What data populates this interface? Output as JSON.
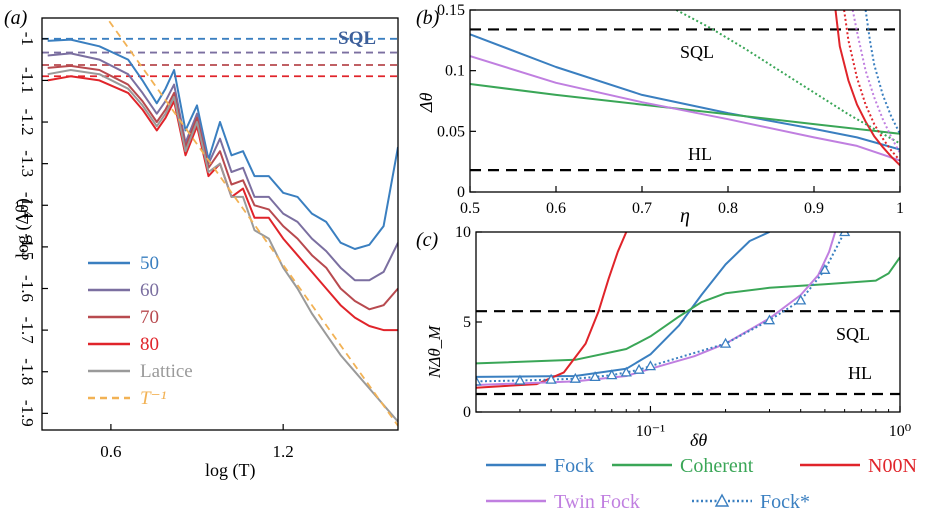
{
  "colors": {
    "blue": "#3a7fc0",
    "purple_gray": "#7b6fa0",
    "brown_red": "#b84a4f",
    "red": "#e0242a",
    "gray": "#9a9a9a",
    "orange": "#f2b255",
    "green": "#3aa657",
    "violet": "#c07fe0",
    "black": "#000000",
    "sql_blue": "#3d5f9a",
    "sql_red": "#c62828"
  },
  "chart_data": [
    {
      "panel": "(a)",
      "type": "line",
      "xlabel": "log (T)",
      "ylabel": "log (Δθ̄)",
      "xlim": [
        0.36,
        1.6
      ],
      "ylim": [
        -1.94,
        -0.95
      ],
      "x_ticks": [
        {
          "v": 0.6,
          "label": "0.6"
        },
        {
          "v": 1.2,
          "label": "1.2"
        }
      ],
      "y_ticks": [
        {
          "v": -1.0,
          "label": "-1"
        },
        {
          "v": -1.1,
          "label": "-1.1"
        },
        {
          "v": -1.2,
          "label": "-1.2"
        },
        {
          "v": -1.3,
          "label": "-1.3"
        },
        {
          "v": -1.4,
          "label": "-1.4"
        },
        {
          "v": -1.5,
          "label": "-1.5"
        },
        {
          "v": -1.6,
          "label": "-1.6"
        },
        {
          "v": -1.7,
          "label": "-1.7"
        },
        {
          "v": -1.8,
          "label": "-1.8"
        },
        {
          "v": -1.9,
          "label": "-1.9"
        }
      ],
      "annotation": "SQL",
      "sql_levels": [
        {
          "y": -1.0,
          "color_key": "blue"
        },
        {
          "y": -1.033,
          "color_key": "purple_gray"
        },
        {
          "y": -1.063,
          "color_key": "brown_red"
        },
        {
          "y": -1.09,
          "color_key": "red"
        }
      ],
      "series": [
        {
          "name": "50",
          "color_key": "blue",
          "style": "solid",
          "x": [
            0.38,
            0.46,
            0.56,
            0.66,
            0.71,
            0.76,
            0.79,
            0.82,
            0.86,
            0.9,
            0.94,
            0.98,
            1.02,
            1.06,
            1.1,
            1.15,
            1.2,
            1.25,
            1.3,
            1.35,
            1.4,
            1.45,
            1.5,
            1.55,
            1.6
          ],
          "y": [
            -1.005,
            -1.002,
            -1.018,
            -1.05,
            -1.1,
            -1.155,
            -1.12,
            -1.075,
            -1.22,
            -1.16,
            -1.29,
            -1.2,
            -1.28,
            -1.27,
            -1.33,
            -1.33,
            -1.37,
            -1.38,
            -1.42,
            -1.44,
            -1.49,
            -1.505,
            -1.495,
            -1.45,
            -1.26
          ]
        },
        {
          "name": "60",
          "color_key": "purple_gray",
          "style": "solid",
          "x": [
            0.38,
            0.46,
            0.56,
            0.66,
            0.71,
            0.76,
            0.79,
            0.82,
            0.86,
            0.9,
            0.94,
            0.98,
            1.02,
            1.06,
            1.1,
            1.15,
            1.2,
            1.25,
            1.3,
            1.35,
            1.4,
            1.45,
            1.5,
            1.55,
            1.6
          ],
          "y": [
            -1.04,
            -1.035,
            -1.05,
            -1.085,
            -1.13,
            -1.18,
            -1.15,
            -1.11,
            -1.25,
            -1.18,
            -1.3,
            -1.24,
            -1.32,
            -1.31,
            -1.38,
            -1.38,
            -1.42,
            -1.44,
            -1.48,
            -1.51,
            -1.55,
            -1.58,
            -1.58,
            -1.56,
            -1.49
          ]
        },
        {
          "name": "70",
          "color_key": "brown_red",
          "style": "solid",
          "x": [
            0.38,
            0.46,
            0.56,
            0.66,
            0.71,
            0.76,
            0.79,
            0.82,
            0.86,
            0.9,
            0.94,
            0.98,
            1.02,
            1.06,
            1.1,
            1.15,
            1.2,
            1.25,
            1.3,
            1.35,
            1.4,
            1.45,
            1.5,
            1.55,
            1.6
          ],
          "y": [
            -1.07,
            -1.065,
            -1.075,
            -1.11,
            -1.15,
            -1.2,
            -1.17,
            -1.13,
            -1.26,
            -1.19,
            -1.31,
            -1.27,
            -1.35,
            -1.34,
            -1.4,
            -1.41,
            -1.45,
            -1.48,
            -1.52,
            -1.55,
            -1.6,
            -1.63,
            -1.65,
            -1.64,
            -1.6
          ]
        },
        {
          "name": "80",
          "color_key": "red",
          "style": "solid",
          "x": [
            0.38,
            0.46,
            0.56,
            0.66,
            0.71,
            0.76,
            0.79,
            0.82,
            0.86,
            0.9,
            0.94,
            0.98,
            1.02,
            1.06,
            1.1,
            1.15,
            1.2,
            1.25,
            1.3,
            1.35,
            1.4,
            1.45,
            1.5,
            1.55,
            1.6
          ],
          "y": [
            -1.1,
            -1.09,
            -1.1,
            -1.13,
            -1.17,
            -1.22,
            -1.19,
            -1.15,
            -1.28,
            -1.21,
            -1.33,
            -1.3,
            -1.38,
            -1.36,
            -1.43,
            -1.43,
            -1.48,
            -1.52,
            -1.56,
            -1.6,
            -1.64,
            -1.67,
            -1.69,
            -1.7,
            -1.7
          ]
        },
        {
          "name": "Lattice",
          "color_key": "gray",
          "style": "solid",
          "x": [
            0.38,
            0.46,
            0.56,
            0.66,
            0.71,
            0.76,
            0.79,
            0.82,
            0.86,
            0.9,
            0.94,
            0.98,
            1.02,
            1.06,
            1.1,
            1.15,
            1.2,
            1.25,
            1.3,
            1.35,
            1.4,
            1.45,
            1.5,
            1.55,
            1.6
          ],
          "y": [
            -1.085,
            -1.075,
            -1.085,
            -1.12,
            -1.16,
            -1.21,
            -1.18,
            -1.14,
            -1.27,
            -1.2,
            -1.32,
            -1.3,
            -1.38,
            -1.38,
            -1.46,
            -1.48,
            -1.55,
            -1.6,
            -1.66,
            -1.71,
            -1.76,
            -1.8,
            -1.84,
            -1.88,
            -1.92
          ]
        },
        {
          "name": "T⁻¹",
          "color_key": "orange",
          "style": "dashed",
          "x": [
            0.4,
            1.6
          ],
          "y": [
            -0.77,
            -1.93
          ]
        }
      ],
      "legend": {
        "placement": "bottom-left",
        "items": [
          "50",
          "60",
          "70",
          "80",
          "Lattice",
          "T⁻¹"
        ]
      }
    },
    {
      "panel": "(b)",
      "type": "line",
      "xlabel": "η",
      "ylabel": "Δθ",
      "xlim": [
        0.5,
        1.0
      ],
      "ylim": [
        0,
        0.15
      ],
      "x_ticks": [
        {
          "v": 0.5,
          "label": "0.5"
        },
        {
          "v": 0.6,
          "label": "0.6"
        },
        {
          "v": 0.7,
          "label": "0.7"
        },
        {
          "v": 0.8,
          "label": "0.8"
        },
        {
          "v": 0.9,
          "label": "0.9"
        },
        {
          "v": 1.0,
          "label": "1"
        }
      ],
      "y_ticks": [
        {
          "v": 0,
          "label": "0"
        },
        {
          "v": 0.05,
          "label": "0.05"
        },
        {
          "v": 0.1,
          "label": "0.1"
        },
        {
          "v": 0.15,
          "label": "0.15"
        }
      ],
      "reference_lines": [
        {
          "label": "SQL",
          "y": 0.134
        },
        {
          "label": "HL",
          "y": 0.018
        }
      ],
      "series": [
        {
          "name": "Fock",
          "color_key": "blue",
          "style": "solid",
          "x": [
            0.5,
            0.6,
            0.7,
            0.8,
            0.9,
            0.95,
            1.0
          ],
          "y": [
            0.13,
            0.103,
            0.08,
            0.065,
            0.052,
            0.045,
            0.035
          ]
        },
        {
          "name": "Coherent",
          "color_key": "green",
          "style": "solid",
          "x": [
            0.5,
            0.6,
            0.7,
            0.8,
            0.9,
            1.0
          ],
          "y": [
            0.089,
            0.08,
            0.072,
            0.064,
            0.056,
            0.048
          ]
        },
        {
          "name": "Twin Fock",
          "color_key": "violet",
          "style": "solid",
          "x": [
            0.5,
            0.6,
            0.7,
            0.8,
            0.9,
            0.95,
            1.0
          ],
          "y": [
            0.112,
            0.09,
            0.074,
            0.06,
            0.045,
            0.038,
            0.026
          ]
        },
        {
          "name": "N00N",
          "color_key": "red",
          "style": "solid",
          "x": [
            0.925,
            0.93,
            0.94,
            0.95,
            0.96,
            0.97,
            0.98,
            0.99,
            1.0
          ],
          "y": [
            0.15,
            0.12,
            0.092,
            0.072,
            0.058,
            0.046,
            0.037,
            0.029,
            0.022
          ]
        },
        {
          "name": "Coherent (dotted)",
          "color_key": "green",
          "style": "dotted",
          "x": [
            0.74,
            0.78,
            0.82,
            0.86,
            0.9,
            0.94,
            0.98,
            1.0
          ],
          "y": [
            0.15,
            0.135,
            0.118,
            0.1,
            0.082,
            0.064,
            0.048,
            0.04
          ]
        },
        {
          "name": "N00N (dotted)",
          "color_key": "red",
          "style": "dotted",
          "x": [
            0.935,
            0.94,
            0.95,
            0.96,
            0.97,
            0.98,
            0.99,
            1.0
          ],
          "y": [
            0.15,
            0.125,
            0.094,
            0.072,
            0.056,
            0.044,
            0.034,
            0.026
          ]
        },
        {
          "name": "Fock (dotted)",
          "color_key": "blue",
          "style": "dotted",
          "x": [
            0.96,
            0.965,
            0.97,
            0.98,
            0.99,
            1.0
          ],
          "y": [
            0.15,
            0.125,
            0.105,
            0.08,
            0.062,
            0.048
          ]
        },
        {
          "name": "Twin Fock (dotted)",
          "color_key": "violet",
          "style": "dotted",
          "x": [
            0.945,
            0.95,
            0.96,
            0.97,
            0.98,
            0.99,
            1.0
          ],
          "y": [
            0.15,
            0.132,
            0.1,
            0.078,
            0.06,
            0.045,
            0.032
          ]
        }
      ]
    },
    {
      "panel": "(c)",
      "type": "line",
      "xlabel": "δθ",
      "ylabel": "NΔθ_M",
      "xscale": "log",
      "xlim": [
        0.02,
        1.0
      ],
      "ylim": [
        0,
        10
      ],
      "x_ticks": [
        {
          "v": 0.1,
          "label": "10⁻¹"
        },
        {
          "v": 1.0,
          "label": "10⁰"
        }
      ],
      "y_ticks": [
        {
          "v": 0,
          "label": "0"
        },
        {
          "v": 5,
          "label": "5"
        },
        {
          "v": 10,
          "label": "10"
        }
      ],
      "reference_lines": [
        {
          "label": "SQL",
          "y": 5.6
        },
        {
          "label": "HL",
          "y": 1.0
        }
      ],
      "series": [
        {
          "name": "Fock",
          "color_key": "blue",
          "style": "solid",
          "x": [
            0.02,
            0.05,
            0.08,
            0.1,
            0.13,
            0.16,
            0.2,
            0.25,
            0.3
          ],
          "y": [
            1.95,
            2.0,
            2.4,
            3.2,
            4.8,
            6.5,
            8.2,
            9.5,
            10.0
          ]
        },
        {
          "name": "Coherent",
          "color_key": "green",
          "style": "solid",
          "x": [
            0.02,
            0.05,
            0.08,
            0.1,
            0.13,
            0.16,
            0.2,
            0.3,
            0.5,
            0.8,
            0.9,
            1.0
          ],
          "y": [
            2.7,
            2.9,
            3.5,
            4.2,
            5.3,
            6.1,
            6.6,
            6.9,
            7.1,
            7.3,
            7.7,
            8.6
          ]
        },
        {
          "name": "N00N",
          "color_key": "red",
          "style": "solid",
          "x": [
            0.02,
            0.035,
            0.045,
            0.055,
            0.062,
            0.068,
            0.074,
            0.08
          ],
          "y": [
            1.35,
            1.55,
            2.2,
            3.8,
            5.6,
            7.4,
            8.9,
            10.0
          ]
        },
        {
          "name": "Twin Fock",
          "color_key": "violet",
          "style": "solid",
          "x": [
            0.02,
            0.05,
            0.08,
            0.1,
            0.15,
            0.2,
            0.3,
            0.4,
            0.47,
            0.52,
            0.55
          ],
          "y": [
            1.5,
            1.7,
            2.0,
            2.4,
            3.1,
            3.8,
            5.2,
            6.5,
            7.6,
            8.9,
            10.0
          ]
        },
        {
          "name": "Fock*",
          "color_key": "blue",
          "style": "dotted-markers",
          "x": [
            0.02,
            0.03,
            0.04,
            0.05,
            0.06,
            0.07,
            0.08,
            0.09,
            0.1,
            0.2,
            0.3,
            0.4,
            0.5,
            0.6
          ],
          "y": [
            1.7,
            1.75,
            1.8,
            1.85,
            1.95,
            2.05,
            2.2,
            2.35,
            2.55,
            3.8,
            5.1,
            6.2,
            7.9,
            10.0
          ]
        }
      ]
    }
  ],
  "legend_bottom": {
    "items": [
      {
        "label": "Fock",
        "color_key": "blue",
        "style": "solid"
      },
      {
        "label": "Coherent",
        "color_key": "green",
        "style": "solid"
      },
      {
        "label": "N00N",
        "color_key": "red",
        "style": "solid"
      },
      {
        "label": "Twin Fock",
        "color_key": "violet",
        "style": "solid"
      },
      {
        "label": "Fock*",
        "color_key": "blue",
        "style": "dotted-markers"
      }
    ]
  }
}
